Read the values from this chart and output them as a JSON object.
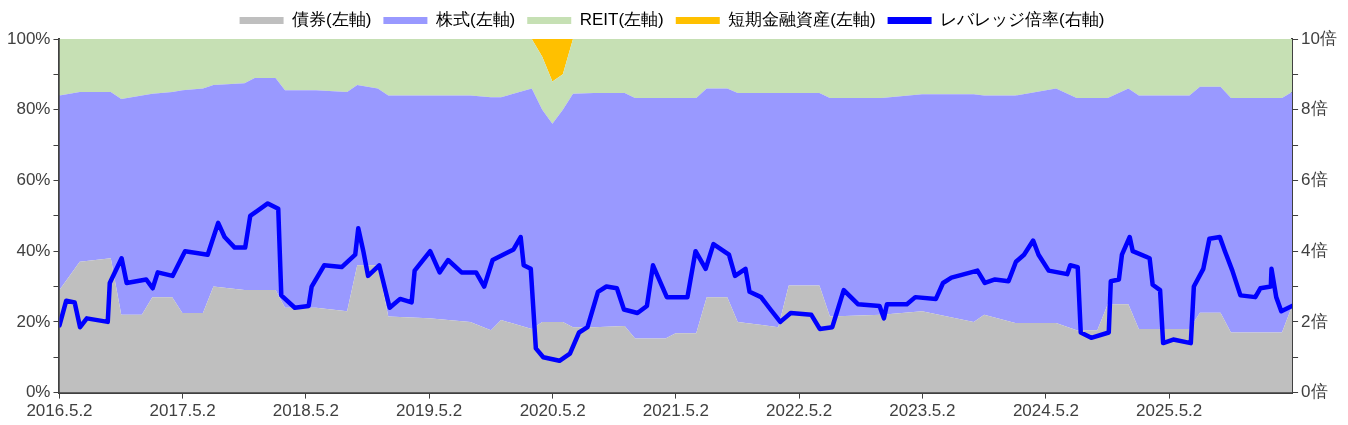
{
  "chart_data": {
    "type": "area",
    "stacked": true,
    "legend": "top",
    "grid": false,
    "x": [
      "2016-05-02",
      "2016-07-01",
      "2016-10-01",
      "2016-11-01",
      "2017-01-01",
      "2017-02-01",
      "2017-04-01",
      "2017-05-01",
      "2017-07-01",
      "2017-08-01",
      "2017-11-01",
      "2017-12-01",
      "2018-02-01",
      "2018-03-01",
      "2018-06-01",
      "2018-09-01",
      "2018-10-01",
      "2018-12-01",
      "2019-01-01",
      "2019-05-01",
      "2019-09-01",
      "2019-11-01",
      "2019-12-01",
      "2020-03-01",
      "2020-04-01",
      "2020-05-01",
      "2020-06-01",
      "2020-07-01",
      "2020-09-01",
      "2020-12-01",
      "2021-01-01",
      "2021-04-01",
      "2021-05-01",
      "2021-07-01",
      "2021-08-01",
      "2021-10-01",
      "2021-11-01",
      "2022-03-01",
      "2022-04-01",
      "2022-07-01",
      "2022-08-01",
      "2023-01-01",
      "2023-05-01",
      "2023-10-01",
      "2023-11-01",
      "2024-02-01",
      "2024-06-01",
      "2024-08-01",
      "2024-10-01",
      "2024-11-01",
      "2025-01-01",
      "2025-02-01",
      "2025-07-01",
      "2025-08-01",
      "2025-10-01",
      "2025-11-01",
      "2026-04-01",
      "2026-05-01"
    ],
    "series": [
      {
        "name": "債券(左軸)",
        "color": "#bfbfbf",
        "values": [
          29,
          37,
          38,
          22,
          22,
          27,
          27,
          22.5,
          22.5,
          30,
          29,
          29,
          29,
          24,
          24,
          23,
          36,
          36,
          21.5,
          21,
          20,
          17.6,
          20.5,
          18,
          20,
          20,
          20,
          18.5,
          18.5,
          18.8,
          15.3,
          15.3,
          16.8,
          16.8,
          27,
          27,
          20,
          18.5,
          30.3,
          30.3,
          21.5,
          22,
          23,
          20,
          22,
          19.7,
          19.7,
          17.6,
          17.6,
          25,
          25,
          18,
          18,
          22.6,
          22.6,
          17,
          17,
          24.5
        ]
      },
      {
        "name": "株式(左軸)",
        "color": "#9999ff",
        "values": [
          55,
          48,
          47,
          61,
          62,
          57.5,
          58,
          63,
          63.5,
          57,
          58.5,
          60,
          60,
          61.5,
          61.5,
          62,
          51,
          50,
          62.5,
          63,
          64,
          65.9,
          63,
          68,
          60,
          56,
          60,
          66,
          66.2,
          65.9,
          68,
          68,
          66.5,
          66.5,
          59,
          59,
          64.7,
          66.2,
          54.4,
          54.4,
          61.8,
          61.3,
          61.4,
          64.4,
          62,
          64.3,
          66.3,
          65.7,
          65.7,
          58.3,
          61,
          66,
          66,
          63.9,
          63.9,
          66.3,
          66.3,
          60.5
        ]
      },
      {
        "name": "REIT(左軸)",
        "color": "#c6e0b4",
        "values": [
          16,
          15,
          15,
          17,
          16,
          15.5,
          15,
          14.5,
          14,
          13,
          12.5,
          11,
          11,
          14.5,
          14.5,
          15,
          13,
          14,
          16,
          16,
          16,
          16.5,
          16.5,
          14,
          15,
          12,
          10,
          15.5,
          15.3,
          15.3,
          16.7,
          16.7,
          16.7,
          16.7,
          14,
          14,
          15.3,
          15.3,
          15.3,
          15.3,
          16.7,
          16.7,
          15.6,
          15.6,
          16,
          16,
          14,
          16.7,
          16.7,
          16.7,
          14,
          16,
          16,
          13.5,
          13.5,
          16.7,
          16.7,
          15
        ]
      },
      {
        "name": "短期金融資産(左軸)",
        "color": "#ffc000",
        "values": [
          null,
          null,
          null,
          null,
          null,
          null,
          null,
          null,
          null,
          null,
          null,
          null,
          null,
          null,
          null,
          null,
          null,
          null,
          null,
          null,
          null,
          null,
          null,
          0,
          5,
          12,
          10,
          0,
          null,
          null,
          null,
          null,
          null,
          null,
          null,
          null,
          null,
          null,
          null,
          null,
          null,
          null,
          null,
          null,
          null,
          null,
          null,
          null,
          null,
          null,
          null,
          null,
          null,
          null,
          null,
          null,
          null,
          null
        ]
      },
      {
        "name": "レバレッジ倍率(右軸)",
        "type": "line",
        "axis": "y2",
        "color": "#0000ff",
        "x": [
          "2016-05-02",
          "2016-05-22",
          "2016-06-16",
          "2016-07-02",
          "2016-07-22",
          "2016-09-22",
          "2016-09-28",
          "2016-11-02",
          "2016-11-17",
          "2017-01-14",
          "2017-02-02",
          "2017-02-17",
          "2017-04-02",
          "2017-05-09",
          "2017-07-15",
          "2017-08-15",
          "2017-09-03",
          "2017-10-03",
          "2017-11-03",
          "2017-11-18",
          "2018-01-09",
          "2018-02-09",
          "2018-02-18",
          "2018-03-30",
          "2018-05-10",
          "2018-05-19",
          "2018-06-25",
          "2018-08-16",
          "2018-09-25",
          "2018-10-04",
          "2018-10-19",
          "2018-11-02",
          "2018-12-05",
          "2019-01-05",
          "2019-02-05",
          "2019-03-11",
          "2019-03-20",
          "2019-05-05",
          "2019-06-02",
          "2019-06-27",
          "2019-08-06",
          "2019-09-18",
          "2019-10-12",
          "2019-11-06",
          "2020-01-07",
          "2020-01-28",
          "2020-02-06",
          "2020-02-27",
          "2020-03-13",
          "2020-04-04",
          "2020-05-22",
          "2020-06-22",
          "2020-07-19",
          "2020-08-13",
          "2020-09-13",
          "2020-10-08",
          "2020-11-08",
          "2020-11-29",
          "2021-01-08",
          "2021-02-05",
          "2021-02-23",
          "2021-04-05",
          "2021-06-05",
          "2021-06-29",
          "2021-07-29",
          "2021-08-21",
          "2021-10-06",
          "2021-10-24",
          "2021-11-24",
          "2021-12-06",
          "2022-01-09",
          "2022-02-06",
          "2022-03-07",
          "2022-04-07",
          "2022-06-07",
          "2022-07-02",
          "2022-08-08",
          "2022-09-11",
          "2022-10-23",
          "2022-12-26",
          "2023-01-08",
          "2023-01-17",
          "2023-03-02",
          "2023-03-17",
          "2023-04-11",
          "2023-06-11",
          "2023-07-02",
          "2023-07-27",
          "2023-10-12",
          "2023-11-03",
          "2023-12-03",
          "2024-01-12",
          "2024-02-03",
          "2024-02-27",
          "2024-03-25",
          "2024-04-10",
          "2024-05-10",
          "2024-07-04",
          "2024-07-13",
          "2024-08-04",
          "2024-08-13",
          "2024-09-13",
          "2024-11-04",
          "2024-11-10",
          "2024-12-04",
          "2024-12-13",
          "2025-01-05",
          "2025-01-14",
          "2025-03-05",
          "2025-03-14",
          "2025-04-05",
          "2025-04-14",
          "2025-05-14",
          "2025-07-05",
          "2025-07-14",
          "2025-08-11",
          "2025-08-29",
          "2025-09-29",
          "2025-10-14",
          "2025-11-05",
          "2025-11-29",
          "2026-01-12",
          "2026-01-27",
          "2026-02-27",
          "2026-03-01",
          "2026-03-15",
          "2026-03-30",
          "2026-05-01"
        ],
        "values": [
          1.9,
          2.6,
          2.55,
          1.85,
          2.1,
          2.0,
          3.1,
          3.8,
          3.1,
          3.2,
          2.95,
          3.4,
          3.3,
          4.0,
          3.9,
          4.8,
          4.4,
          4.1,
          4.1,
          5.0,
          5.35,
          5.2,
          2.75,
          2.4,
          2.45,
          3.0,
          3.6,
          3.55,
          3.9,
          4.65,
          4.0,
          3.3,
          3.6,
          2.4,
          2.65,
          2.55,
          3.45,
          4.0,
          3.4,
          3.75,
          3.4,
          3.4,
          3.0,
          3.75,
          4.05,
          4.4,
          3.6,
          3.5,
          1.25,
          1.0,
          0.9,
          1.1,
          1.7,
          1.85,
          2.85,
          3.0,
          2.95,
          2.35,
          2.25,
          2.45,
          3.6,
          2.7,
          2.7,
          4.0,
          3.5,
          4.2,
          3.9,
          3.3,
          3.5,
          2.85,
          2.7,
          2.35,
          2.0,
          2.25,
          2.2,
          1.8,
          1.85,
          2.9,
          2.5,
          2.45,
          2.1,
          2.5,
          2.5,
          2.5,
          2.7,
          2.65,
          3.1,
          3.25,
          3.45,
          3.1,
          3.2,
          3.15,
          3.7,
          3.9,
          4.3,
          3.9,
          3.45,
          3.35,
          3.6,
          3.55,
          1.7,
          1.55,
          1.7,
          3.15,
          3.2,
          3.9,
          4.4,
          4.0,
          3.8,
          3.05,
          2.9,
          1.4,
          1.5,
          1.4,
          3.0,
          3.5,
          4.35,
          4.4,
          4.0,
          3.45,
          2.75,
          2.7,
          2.95,
          3.0,
          3.5,
          2.7,
          2.3,
          2.45
        ]
      }
    ],
    "xlim": [
      "2016-05-02",
      "2026-05-01"
    ],
    "xticks": [
      {
        "value": "2016-05-02",
        "label": "2016.5.2"
      },
      {
        "value": "2017-05-02",
        "label": "2017.5.2"
      },
      {
        "value": "2018-05-02",
        "label": "2018.5.2"
      },
      {
        "value": "2019-05-02",
        "label": "2019.5.2"
      },
      {
        "value": "2020-05-02",
        "label": "2020.5.2"
      },
      {
        "value": "2021-05-02",
        "label": "2021.5.2"
      },
      {
        "value": "2022-05-02",
        "label": "2022.5.2"
      },
      {
        "value": "2023-05-02",
        "label": "2023.5.2"
      },
      {
        "value": "2024-05-02",
        "label": "2024.5.2"
      },
      {
        "value": "2025-05-02",
        "label": "2025.5.2"
      }
    ],
    "ylim": [
      0,
      100
    ],
    "yticks": [
      {
        "value": 0,
        "label": "0%"
      },
      {
        "value": 10,
        "label": null
      },
      {
        "value": 20,
        "label": "20%"
      },
      {
        "value": 30,
        "label": null
      },
      {
        "value": 40,
        "label": "40%"
      },
      {
        "value": 50,
        "label": null
      },
      {
        "value": 60,
        "label": "60%"
      },
      {
        "value": 70,
        "label": null
      },
      {
        "value": 80,
        "label": "80%"
      },
      {
        "value": 90,
        "label": null
      },
      {
        "value": 100,
        "label": "100%"
      }
    ],
    "y2lim": [
      0,
      10
    ],
    "y2ticks": [
      {
        "value": 0,
        "label": "0倍"
      },
      {
        "value": 1,
        "label": null
      },
      {
        "value": 2,
        "label": "2倍"
      },
      {
        "value": 3,
        "label": null
      },
      {
        "value": 4,
        "label": "4倍"
      },
      {
        "value": 5,
        "label": null
      },
      {
        "value": 6,
        "label": "6倍"
      },
      {
        "value": 7,
        "label": null
      },
      {
        "value": 8,
        "label": "8倍"
      },
      {
        "value": 9,
        "label": null
      },
      {
        "value": 10,
        "label": "10倍"
      }
    ]
  }
}
